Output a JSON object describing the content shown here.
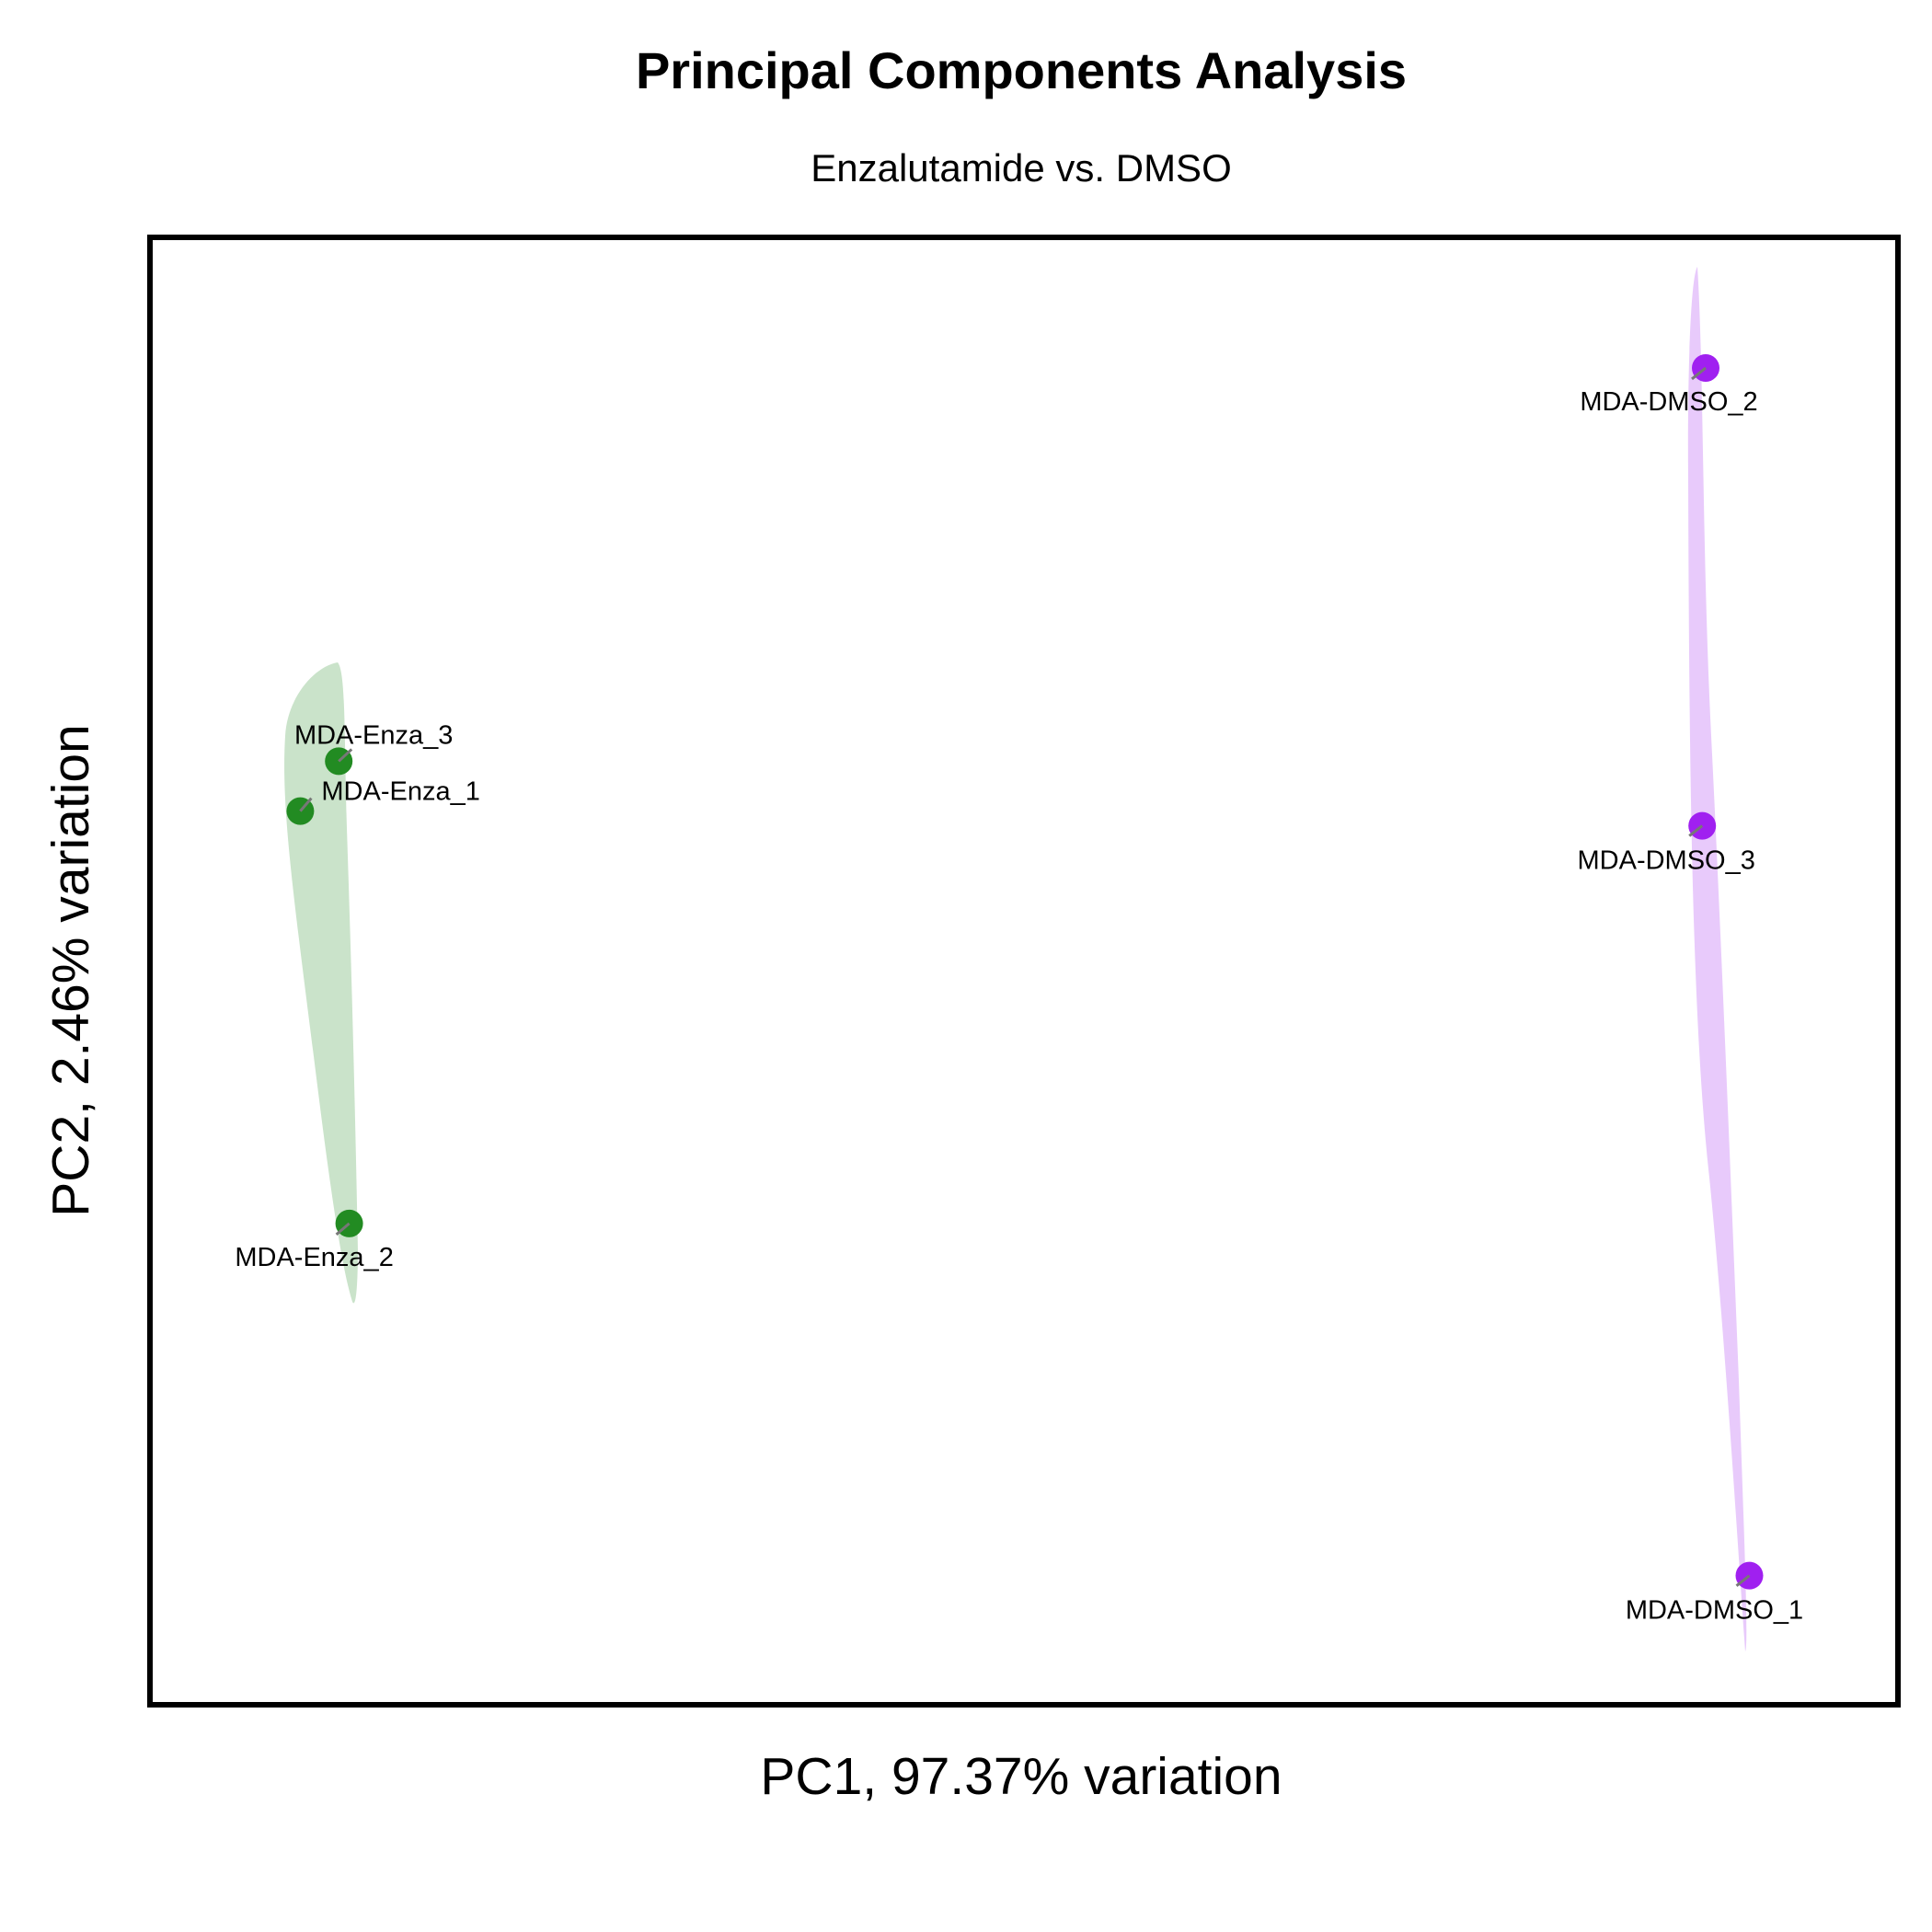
{
  "chart_data": {
    "type": "scatter",
    "title": "Principal Components Analysis",
    "subtitle": "Enzalutamide vs. DMSO",
    "xlabel": "PC1, 97.37% variation",
    "ylabel": "PC2, 2.46% variation",
    "grid": false,
    "legend": "none",
    "xlim": [
      0,
      100
    ],
    "ylim": [
      0,
      100
    ],
    "series": [
      {
        "color": "#228B22",
        "fill": "#228B22",
        "points": [
          {
            "label": "MDA-Enza_1",
            "x": 8.6,
            "y": 60.9
          },
          {
            "label": "MDA-Enza_2",
            "x": 11.4,
            "y": 32.8
          },
          {
            "label": "MDA-Enza_3",
            "x": 10.8,
            "y": 64.3
          }
        ]
      },
      {
        "color": "#A020F0",
        "fill": "#A020F0",
        "points": [
          {
            "label": "MDA-DMSO_1",
            "x": 91.5,
            "y": 8.8
          },
          {
            "label": "MDA-DMSO_2",
            "x": 89.0,
            "y": 91.1
          },
          {
            "label": "MDA-DMSO_3",
            "x": 88.8,
            "y": 59.9
          }
        ]
      }
    ]
  }
}
